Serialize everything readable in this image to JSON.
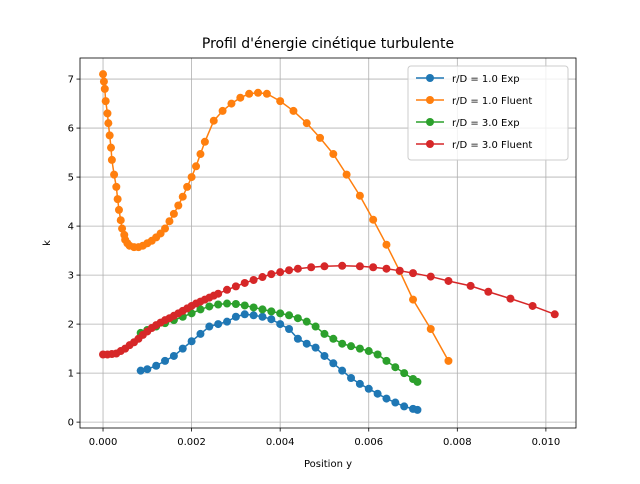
{
  "chart_data": {
    "type": "line",
    "title": "Profil d'énergie cinétique turbulente",
    "xlabel": "Position y",
    "ylabel": "k",
    "xlim": [
      -0.00052,
      0.01068
    ],
    "ylim": [
      -0.12,
      7.43
    ],
    "xticks": [
      {
        "value": 0,
        "label": "0.000"
      },
      {
        "value": 0.002,
        "label": "0.002"
      },
      {
        "value": 0.004,
        "label": "0.004"
      },
      {
        "value": 0.006,
        "label": "0.006"
      },
      {
        "value": 0.008,
        "label": "0.008"
      },
      {
        "value": 0.01,
        "label": "0.010"
      }
    ],
    "yticks": [
      0,
      1,
      2,
      3,
      4,
      5,
      6,
      7
    ],
    "grid": true,
    "legend": "upper right",
    "series": [
      {
        "name": "r/D = 1.0 Exp",
        "color": "#1f77b4",
        "x": [
          0.00085,
          0.001,
          0.0012,
          0.0014,
          0.0016,
          0.0018,
          0.002,
          0.0022,
          0.0024,
          0.0026,
          0.0028,
          0.003,
          0.0032,
          0.0034,
          0.0036,
          0.0038,
          0.004,
          0.0042,
          0.0044,
          0.0046,
          0.0048,
          0.005,
          0.0052,
          0.0054,
          0.0056,
          0.0058,
          0.006,
          0.0062,
          0.0064,
          0.0066,
          0.0068,
          0.007,
          0.0071
        ],
        "values": [
          1.05,
          1.08,
          1.15,
          1.25,
          1.35,
          1.5,
          1.65,
          1.8,
          1.95,
          2.0,
          2.05,
          2.15,
          2.2,
          2.18,
          2.15,
          2.1,
          2.0,
          1.9,
          1.7,
          1.6,
          1.52,
          1.35,
          1.2,
          1.05,
          0.9,
          0.78,
          0.68,
          0.58,
          0.48,
          0.4,
          0.32,
          0.27,
          0.25
        ]
      },
      {
        "name": "r/D = 1.0 Fluent",
        "color": "#ff7f0e",
        "x": [
          0,
          2e-05,
          4e-05,
          6e-05,
          0.0001,
          0.00012,
          0.00015,
          0.00018,
          0.0002,
          0.00025,
          0.0003,
          0.00033,
          0.00036,
          0.0004,
          0.00043,
          0.00048,
          0.0005,
          0.00055,
          0.0006,
          0.0007,
          0.0008,
          0.0009,
          0.001,
          0.0011,
          0.0012,
          0.0013,
          0.0014,
          0.0015,
          0.0016,
          0.0017,
          0.0018,
          0.0019,
          0.002,
          0.0021,
          0.0022,
          0.0023,
          0.0025,
          0.0027,
          0.0029,
          0.0031,
          0.0033,
          0.0035,
          0.0037,
          0.004,
          0.0043,
          0.0046,
          0.0049,
          0.0052,
          0.0055,
          0.0058,
          0.0061,
          0.0064,
          0.0067,
          0.007,
          0.0074,
          0.0078
        ],
        "values": [
          7.1,
          6.95,
          6.8,
          6.55,
          6.3,
          6.1,
          5.85,
          5.6,
          5.35,
          5.05,
          4.8,
          4.55,
          4.33,
          4.12,
          3.95,
          3.82,
          3.72,
          3.65,
          3.6,
          3.57,
          3.57,
          3.6,
          3.65,
          3.7,
          3.77,
          3.85,
          3.95,
          4.1,
          4.25,
          4.42,
          4.6,
          4.8,
          5.0,
          5.22,
          5.47,
          5.72,
          6.15,
          6.35,
          6.5,
          6.62,
          6.7,
          6.72,
          6.7,
          6.55,
          6.35,
          6.1,
          5.8,
          5.47,
          5.05,
          4.62,
          4.13,
          3.62,
          3.08,
          2.5,
          1.9,
          1.25
        ]
      },
      {
        "name": "r/D = 3.0 Exp",
        "color": "#2ca02c",
        "x": [
          0.00085,
          0.001,
          0.0012,
          0.0014,
          0.0016,
          0.0018,
          0.002,
          0.0022,
          0.0024,
          0.0026,
          0.0028,
          0.003,
          0.0032,
          0.0034,
          0.0036,
          0.0038,
          0.004,
          0.0042,
          0.0044,
          0.0046,
          0.0048,
          0.005,
          0.0052,
          0.0054,
          0.0056,
          0.0058,
          0.006,
          0.0062,
          0.0064,
          0.0066,
          0.0068,
          0.007,
          0.0071
        ],
        "values": [
          1.82,
          1.88,
          1.95,
          2.02,
          2.08,
          2.15,
          2.22,
          2.3,
          2.36,
          2.4,
          2.42,
          2.41,
          2.38,
          2.34,
          2.3,
          2.26,
          2.22,
          2.18,
          2.12,
          2.05,
          1.95,
          1.8,
          1.7,
          1.6,
          1.55,
          1.5,
          1.45,
          1.38,
          1.25,
          1.12,
          1.0,
          0.88,
          0.82
        ]
      },
      {
        "name": "r/D = 3.0 Fluent",
        "color": "#d62728",
        "x": [
          0,
          0.0001,
          0.0002,
          0.0003,
          0.0004,
          0.0005,
          0.0006,
          0.0007,
          0.0008,
          0.0009,
          0.001,
          0.0011,
          0.0012,
          0.0013,
          0.0014,
          0.0015,
          0.0016,
          0.0017,
          0.0018,
          0.0019,
          0.002,
          0.0021,
          0.0022,
          0.0023,
          0.0024,
          0.0025,
          0.0026,
          0.0028,
          0.003,
          0.0032,
          0.0034,
          0.0036,
          0.0038,
          0.004,
          0.0042,
          0.0044,
          0.0047,
          0.005,
          0.0054,
          0.0058,
          0.0061,
          0.0064,
          0.0067,
          0.007,
          0.0074,
          0.0078,
          0.0083,
          0.0087,
          0.0092,
          0.0097,
          0.0102
        ],
        "values": [
          1.38,
          1.38,
          1.39,
          1.4,
          1.45,
          1.5,
          1.57,
          1.63,
          1.7,
          1.78,
          1.85,
          1.92,
          1.98,
          2.03,
          2.08,
          2.12,
          2.17,
          2.22,
          2.27,
          2.32,
          2.37,
          2.42,
          2.46,
          2.5,
          2.54,
          2.58,
          2.62,
          2.7,
          2.77,
          2.84,
          2.9,
          2.96,
          3.02,
          3.06,
          3.1,
          3.13,
          3.16,
          3.18,
          3.19,
          3.18,
          3.16,
          3.13,
          3.09,
          3.04,
          2.97,
          2.88,
          2.78,
          2.66,
          2.52,
          2.37,
          2.2
        ]
      }
    ]
  }
}
